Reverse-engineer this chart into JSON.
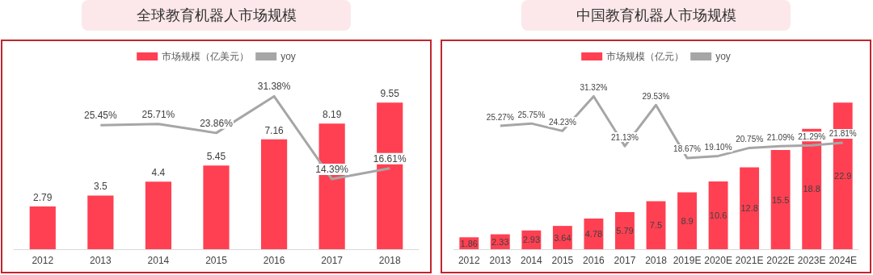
{
  "chart_data": [
    {
      "type": "bar",
      "title": "全球教育机器人市场规模",
      "categories": [
        "2012",
        "2013",
        "2014",
        "2015",
        "2016",
        "2017",
        "2018"
      ],
      "legend": "top",
      "grid": false,
      "tick_labels": "x",
      "series": [
        {
          "name": "市场规模（亿美元）",
          "color": "#ff4052",
          "values": [
            2.79,
            3.5,
            4.4,
            5.45,
            7.16,
            8.19,
            9.55
          ],
          "value_labels": [
            "2.79",
            "3.5",
            "4.4",
            "5.45",
            "7.16",
            "8.19",
            "9.55"
          ]
        },
        {
          "name": "yoy",
          "type": "line",
          "axis": "y2",
          "color": "#a6a6a6",
          "values": [
            null,
            25.45,
            25.71,
            23.86,
            31.38,
            14.39,
            16.61
          ],
          "value_labels": [
            null,
            "25.45%",
            "25.71%",
            "23.86%",
            "31.38%",
            "14.39%",
            "16.61%"
          ]
        }
      ]
    },
    {
      "type": "bar",
      "title": "中国教育机器人市场规模",
      "categories": [
        "2012",
        "2013",
        "2014",
        "2015",
        "2016",
        "2017",
        "2018",
        "2019E",
        "2020E",
        "2021E",
        "2022E",
        "2023E",
        "2024E"
      ],
      "legend": "top",
      "grid": false,
      "tick_labels": "x",
      "series": [
        {
          "name": "市场规模（亿元）",
          "color": "#ff4052",
          "values": [
            1.86,
            2.33,
            2.93,
            3.64,
            4.78,
            5.79,
            7.5,
            8.9,
            10.6,
            12.8,
            15.5,
            18.8,
            22.9
          ],
          "value_labels": [
            "1.86",
            "2.33",
            "2.93",
            "3.64",
            "4.78",
            "5.79",
            "7.5",
            "8.9",
            "10.6",
            "12.8",
            "15.5",
            "18.8",
            "22.9"
          ]
        },
        {
          "name": "yoy",
          "type": "line",
          "axis": "y2",
          "color": "#a6a6a6",
          "values": [
            null,
            25.27,
            25.75,
            24.23,
            31.32,
            21.13,
            29.53,
            18.67,
            19.1,
            20.75,
            21.09,
            21.29,
            21.81
          ],
          "value_labels": [
            null,
            "25.27%",
            "25.75%",
            "24.23%",
            "31.32%",
            "21.13%",
            "29.53%",
            "18.67%",
            "19.10%",
            "20.75%",
            "21.09%",
            "21.29%",
            "21.81%"
          ]
        }
      ]
    }
  ]
}
